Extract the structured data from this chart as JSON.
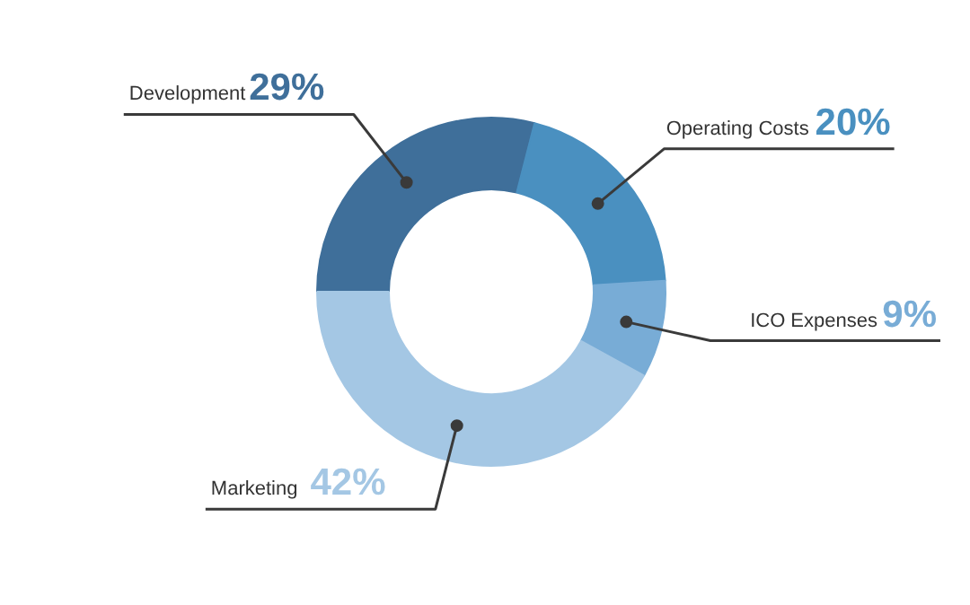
{
  "chart_data": {
    "type": "donut",
    "categories": [
      "Development",
      "Operating Costs",
      "ICO Expenses",
      "Marketing"
    ],
    "values": [
      29,
      20,
      9,
      42
    ],
    "colors": [
      "#3f6f9a",
      "#4a90c0",
      "#78acd6",
      "#a4c7e4"
    ],
    "value_labels": [
      "29%",
      "20%",
      "9%",
      "42%"
    ]
  }
}
